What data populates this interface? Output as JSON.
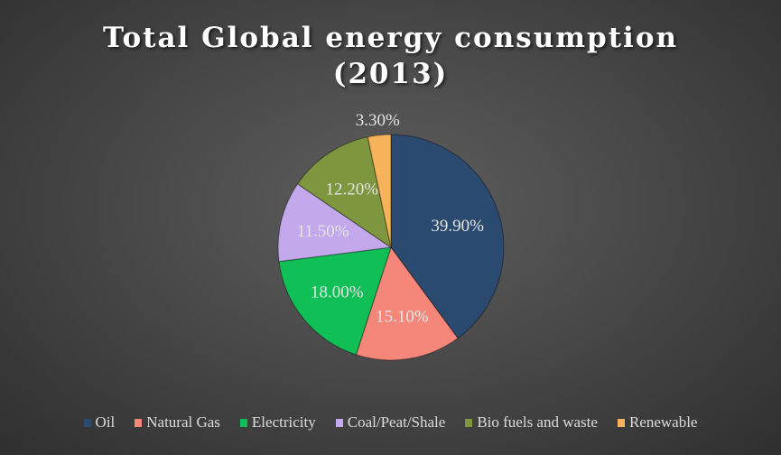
{
  "chart_data": {
    "type": "pie",
    "title_line1": "Total Global energy consumption",
    "title_line2": "(2013)",
    "legend_position": "bottom",
    "slices": [
      {
        "name": "Oil",
        "value": 39.9,
        "label": "39.90%",
        "color": "#2b4a70"
      },
      {
        "name": "Natural Gas",
        "value": 15.1,
        "label": "15.10%",
        "color": "#f4877a"
      },
      {
        "name": "Electricity",
        "value": 18.0,
        "label": "18.00%",
        "color": "#10c057"
      },
      {
        "name": "Coal/Peat/Shale",
        "value": 11.5,
        "label": "11.50%",
        "color": "#c3a8ec"
      },
      {
        "name": "Bio fuels and waste",
        "value": 12.2,
        "label": "12.20%",
        "color": "#7e963e"
      },
      {
        "name": "Renewable",
        "value": 3.3,
        "label": "3.30%",
        "color": "#f7b35a"
      }
    ]
  }
}
